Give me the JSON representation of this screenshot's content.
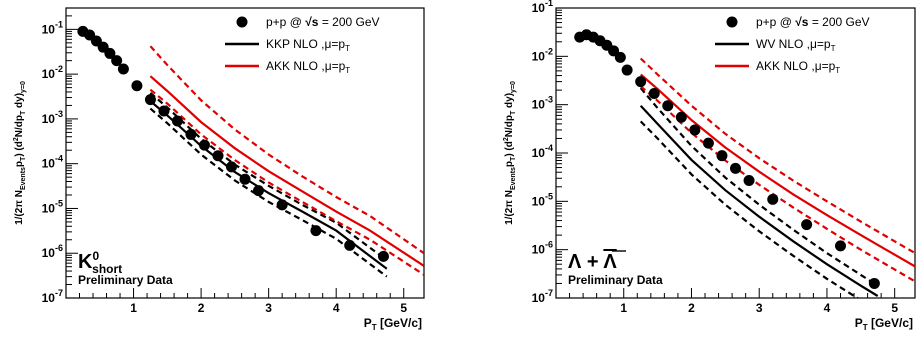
{
  "chart_data": [
    {
      "type": "scatter",
      "panel": "left",
      "xlabel": "P_T [GeV/c]",
      "ylabel": "1/(2π N_Events p_T) (d²N/dp_T dy)_y=0",
      "xlim": [
        0,
        5.3
      ],
      "ylim": [
        1e-07,
        0.3
      ],
      "yscale": "log",
      "particle_label": "K⁰short",
      "particle_main": "K",
      "particle_sup": "0",
      "particle_sub": "short",
      "preliminary_label": "Preliminary Data",
      "legend": [
        {
          "label_main": "p+p @ ",
          "label_sqrt": "√s",
          "label_rest": " = 200 GeV",
          "kind": "marker"
        },
        {
          "label_main": "KKP NLO ,μ=p",
          "label_sub": "T",
          "kind": "line",
          "color": "#000000"
        },
        {
          "label_main": "AKK NLO ,μ=p",
          "label_sub": "T",
          "kind": "line",
          "color": "#e00000"
        }
      ],
      "series": [
        {
          "name": "p+p @ √s = 200 GeV",
          "kind": "points",
          "x": [
            0.25,
            0.35,
            0.45,
            0.55,
            0.65,
            0.75,
            0.85,
            1.05,
            1.25,
            1.45,
            1.65,
            1.85,
            2.05,
            2.25,
            2.45,
            2.65,
            2.85,
            3.2,
            3.7,
            4.2,
            4.7
          ],
          "y": [
            0.09,
            0.075,
            0.055,
            0.04,
            0.029,
            0.02,
            0.013,
            0.0055,
            0.0027,
            0.0015,
            0.0009,
            0.00045,
            0.00026,
            0.00015,
            8.5e-05,
            4.5e-05,
            2.5e-05,
            1.2e-05,
            3.2e-06,
            1.5e-06,
            8.5e-07
          ]
        },
        {
          "name": "KKP NLO ,μ=p_T",
          "kind": "line",
          "color": "#000000",
          "dash": false,
          "x": [
            1.25,
            1.5,
            2.0,
            2.5,
            3.0,
            3.5,
            4.0,
            4.75
          ],
          "y": [
            0.0025,
            0.0012,
            0.00025,
            6.5e-05,
            2.2e-05,
            8.5e-06,
            3.2e-06,
            4.5e-07
          ]
        },
        {
          "name": "KKP NLO upper",
          "kind": "line",
          "color": "#000000",
          "dash": true,
          "x": [
            1.25,
            1.5,
            2.0,
            2.5,
            3.0,
            3.5,
            4.0,
            4.75
          ],
          "y": [
            0.0038,
            0.0018,
            0.00036,
            9.5e-05,
            3.2e-05,
            1.2e-05,
            4.8e-06,
            7e-07
          ]
        },
        {
          "name": "KKP NLO lower",
          "kind": "line",
          "color": "#000000",
          "dash": true,
          "x": [
            1.25,
            1.5,
            2.0,
            2.5,
            3.0,
            3.5,
            4.0,
            4.75
          ],
          "y": [
            0.0017,
            0.0008,
            0.00016,
            4.2e-05,
            1.4e-05,
            5.5e-06,
            2.1e-06,
            3e-07
          ]
        },
        {
          "name": "AKK NLO ,μ=p_T",
          "kind": "line",
          "color": "#e00000",
          "dash": false,
          "x": [
            1.25,
            1.5,
            2.0,
            2.5,
            3.0,
            3.5,
            4.0,
            4.5,
            5.3
          ],
          "y": [
            0.009,
            0.0042,
            0.00085,
            0.00022,
            6.8e-05,
            2.4e-05,
            8.5e-06,
            3.2e-06,
            5.2e-07
          ]
        },
        {
          "name": "AKK NLO upper",
          "kind": "line",
          "color": "#e00000",
          "dash": true,
          "x": [
            1.25,
            1.5,
            2.0,
            2.5,
            3.0,
            3.5,
            4.0,
            4.5,
            5.3
          ],
          "y": [
            0.042,
            0.016,
            0.0026,
            0.00058,
            0.00016,
            5.2e-05,
            1.8e-05,
            6.8e-06,
            1e-06
          ]
        },
        {
          "name": "AKK NLO lower",
          "kind": "line",
          "color": "#e00000",
          "dash": true,
          "x": [
            1.25,
            1.5,
            2.0,
            2.5,
            3.0,
            3.5,
            4.0,
            4.5,
            5.3
          ],
          "y": [
            0.0045,
            0.0022,
            0.00045,
            0.00012,
            3.8e-05,
            1.4e-05,
            5.2e-06,
            2e-06,
            3.3e-07
          ]
        }
      ]
    },
    {
      "type": "scatter",
      "panel": "right",
      "xlabel": "P_T [GeV/c]",
      "ylabel": "1/(2π N_Events p_T) (d²N/dp_T dy)_y=0",
      "xlim": [
        0,
        5.3
      ],
      "ylim": [
        1e-07,
        0.1
      ],
      "yscale": "log",
      "particle_label": "Λ + Λ̄",
      "particle_main": "Λ + ",
      "particle_bar": "Λ",
      "preliminary_label": "Preliminary Data",
      "legend": [
        {
          "label_main": "p+p @ ",
          "label_sqrt": "√s",
          "label_rest": " = 200 GeV",
          "kind": "marker"
        },
        {
          "label_main": "WV NLO ,μ=p",
          "label_sub": "T",
          "kind": "line",
          "color": "#000000"
        },
        {
          "label_main": "AKK NLO ,μ=p",
          "label_sub": "T",
          "kind": "line",
          "color": "#e00000"
        }
      ],
      "series": [
        {
          "name": "p+p @ √s = 200 GeV",
          "kind": "points",
          "x": [
            0.35,
            0.45,
            0.55,
            0.65,
            0.75,
            0.85,
            0.95,
            1.05,
            1.25,
            1.45,
            1.65,
            1.85,
            2.05,
            2.25,
            2.45,
            2.65,
            2.85,
            3.2,
            3.7,
            4.2,
            4.7
          ],
          "y": [
            0.025,
            0.028,
            0.025,
            0.021,
            0.017,
            0.013,
            0.0095,
            0.0052,
            0.003,
            0.0017,
            0.00095,
            0.00055,
            0.0003,
            0.00016,
            8.8e-05,
            4.8e-05,
            2.7e-05,
            1.1e-05,
            3.3e-06,
            1.2e-06,
            2e-07
          ]
        },
        {
          "name": "WV NLO ,μ=p_T",
          "kind": "line",
          "color": "#000000",
          "dash": false,
          "x": [
            1.25,
            1.5,
            2.0,
            2.5,
            3.0,
            3.5,
            4.0,
            4.5,
            4.75
          ],
          "y": [
            0.00095,
            0.0004,
            7.2e-05,
            1.7e-05,
            4.8e-06,
            1.5e-06,
            5e-07,
            1.8e-07,
            1.1e-07
          ]
        },
        {
          "name": "WV NLO upper",
          "kind": "line",
          "color": "#000000",
          "dash": true,
          "x": [
            1.25,
            1.5,
            2.0,
            2.5,
            3.0,
            3.5,
            4.0,
            4.5,
            4.75
          ],
          "y": [
            0.0022,
            0.00085,
            0.00014,
            3.1e-05,
            8.5e-06,
            2.6e-06,
            8.5e-07,
            3e-07,
            1.8e-07
          ]
        },
        {
          "name": "WV NLO lower",
          "kind": "line",
          "color": "#000000",
          "dash": true,
          "x": [
            1.25,
            1.5,
            2.0,
            2.5,
            3.0,
            3.5,
            4.0,
            4.5
          ],
          "y": [
            0.00045,
            0.0002,
            3.6e-05,
            8.5e-06,
            2.4e-06,
            7.5e-07,
            2.5e-07,
            9e-08
          ]
        },
        {
          "name": "AKK NLO ,μ=p_T",
          "kind": "line",
          "color": "#e00000",
          "dash": false,
          "x": [
            1.25,
            1.5,
            2.0,
            2.5,
            3.0,
            3.5,
            4.0,
            4.5,
            5.3
          ],
          "y": [
            0.0042,
            0.0021,
            0.00048,
            0.00013,
            4.1e-05,
            1.4e-05,
            5.2e-06,
            2e-06,
            4.5e-07
          ]
        },
        {
          "name": "AKK NLO upper",
          "kind": "line",
          "color": "#e00000",
          "dash": true,
          "x": [
            1.25,
            1.5,
            2.0,
            2.5,
            3.0,
            3.5,
            4.0,
            4.5,
            5.3
          ],
          "y": [
            0.009,
            0.0042,
            0.00095,
            0.00025,
            7.8e-05,
            2.7e-05,
            1e-05,
            3.8e-06,
            8.5e-07
          ]
        },
        {
          "name": "AKK NLO lower",
          "kind": "line",
          "color": "#e00000",
          "dash": true,
          "x": [
            1.25,
            1.5,
            2.0,
            2.5,
            3.0,
            3.5,
            4.0,
            4.5,
            5.3
          ],
          "y": [
            0.0024,
            0.0012,
            0.00026,
            7e-05,
            2.2e-05,
            7.5e-06,
            2.7e-06,
            1e-06,
            2.2e-07
          ]
        }
      ]
    }
  ]
}
